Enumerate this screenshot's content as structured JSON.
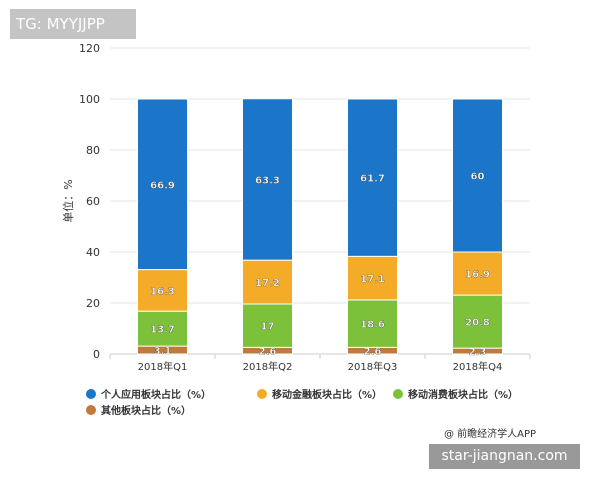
{
  "overlay": {
    "tag_label": "TG: MYYJJPP",
    "site_label": "star-jiangnan.com",
    "credit": "@ 前瞻经济学人APP"
  },
  "colors": {
    "personal": "#1b76c9",
    "finance": "#f3ab28",
    "consumer": "#7dc13b",
    "other": "#c07a3c",
    "grid": "#e6e6e6"
  },
  "chart_data": {
    "type": "bar",
    "stacked": true,
    "ylabel": "单位：%",
    "ylim": [
      0,
      120
    ],
    "yticks": [
      0,
      20,
      40,
      60,
      80,
      100,
      120
    ],
    "grid": true,
    "legend_position": "bottom-left",
    "categories": [
      "2018年Q1",
      "2018年Q2",
      "2018年Q3",
      "2018年Q4"
    ],
    "series": [
      {
        "name": "其他板块占比（%）",
        "key": "other",
        "values": [
          3.1,
          2.6,
          2.6,
          2.3
        ]
      },
      {
        "name": "移动消费板块占比（%）",
        "key": "consumer",
        "values": [
          13.7,
          17,
          18.6,
          20.8
        ]
      },
      {
        "name": "移动金融板块占比（%）",
        "key": "finance",
        "values": [
          16.3,
          17.2,
          17.1,
          16.9
        ]
      },
      {
        "name": "个人应用板块占比（%）",
        "key": "personal",
        "values": [
          66.9,
          63.3,
          61.7,
          60
        ]
      }
    ],
    "legend_order": [
      "personal",
      "finance",
      "consumer",
      "other"
    ]
  }
}
